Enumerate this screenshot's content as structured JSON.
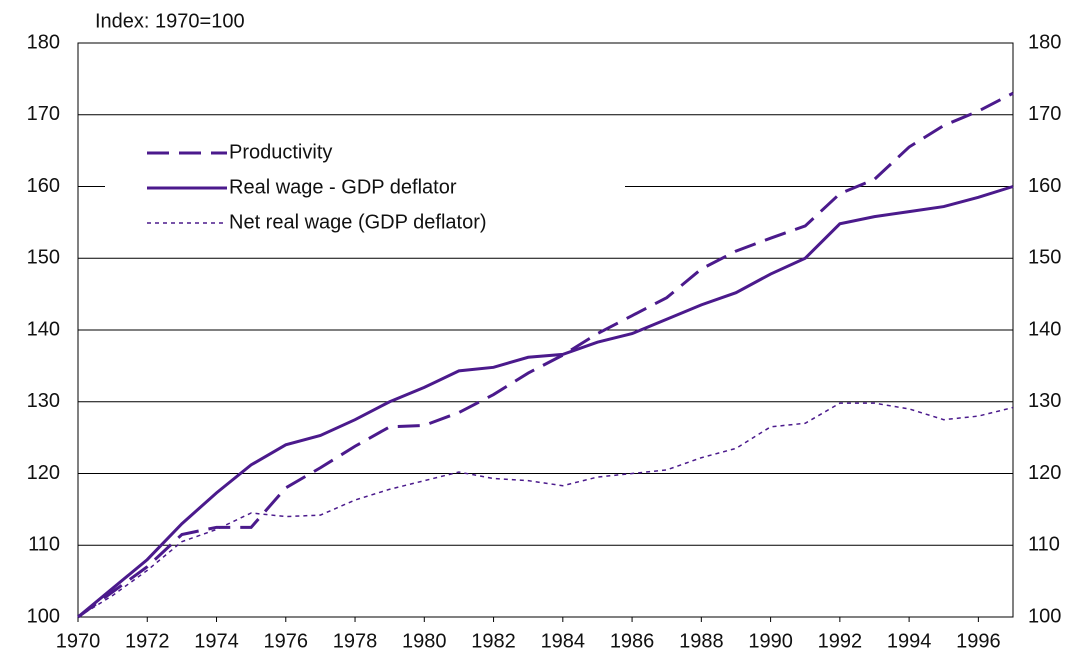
{
  "chart_data": {
    "type": "line",
    "subtitle": "Index: 1970=100",
    "x": [
      1970,
      1971,
      1972,
      1973,
      1974,
      1975,
      1976,
      1977,
      1978,
      1979,
      1980,
      1981,
      1982,
      1983,
      1984,
      1985,
      1986,
      1987,
      1988,
      1989,
      1990,
      1991,
      1992,
      1993,
      1994,
      1995,
      1996,
      1997
    ],
    "series": [
      {
        "name": "Productivity",
        "color": "#4b1a8c",
        "line_style": "dashed",
        "values": [
          100,
          103.5,
          107,
          111.5,
          112.5,
          112.5,
          118,
          120.8,
          123.8,
          126.5,
          126.7,
          128.5,
          131,
          134,
          136.5,
          139.5,
          142,
          144.5,
          148.5,
          151,
          152.8,
          154.5,
          159,
          161,
          165.5,
          168.5,
          170.5,
          173
        ]
      },
      {
        "name": "Real wage - GDP deflator",
        "color": "#4b1a8c",
        "line_style": "solid",
        "values": [
          100,
          104,
          108,
          113,
          117.3,
          121.2,
          124,
          125.3,
          127.5,
          130,
          132,
          134.3,
          134.8,
          136.2,
          136.6,
          138.3,
          139.5,
          141.5,
          143.5,
          145.2,
          147.8,
          150,
          154.8,
          155.8,
          156.5,
          157.2,
          158.5,
          160
        ]
      },
      {
        "name": "Net real wage (GDP deflator)",
        "color": "#4b1a8c",
        "line_style": "dotted",
        "values": [
          100,
          103,
          106.5,
          110.5,
          112.2,
          114.5,
          114,
          114.2,
          116.3,
          117.8,
          119,
          120.2,
          119.3,
          119,
          118.3,
          119.5,
          120,
          120.5,
          122.2,
          123.5,
          126.5,
          127,
          129.8,
          129.8,
          129,
          127.5,
          128,
          129.2
        ]
      }
    ],
    "xlim": [
      1970,
      1997
    ],
    "xticks": [
      1970,
      1972,
      1974,
      1976,
      1978,
      1980,
      1982,
      1984,
      1986,
      1988,
      1990,
      1992,
      1994,
      1996
    ],
    "ylim": [
      100,
      180
    ],
    "yticks": [
      100,
      110,
      120,
      130,
      140,
      150,
      160,
      170,
      180
    ],
    "y2lim": [
      100,
      180
    ],
    "y2ticks": [
      100,
      110,
      120,
      130,
      140,
      150,
      160,
      170,
      180
    ],
    "grid": true,
    "legend": "upper left"
  }
}
